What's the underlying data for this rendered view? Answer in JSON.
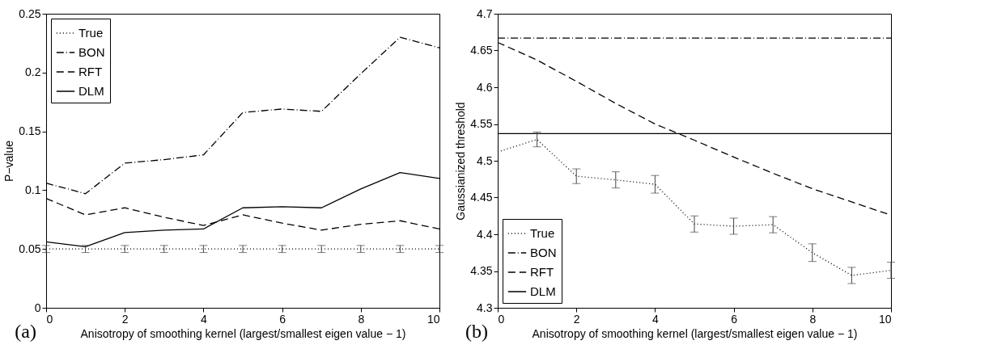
{
  "chart_data": [
    {
      "type": "line",
      "xlabel": "Anisotropy of smoothing kernel (largest/smallest eigen value − 1)",
      "ylabel": "P−value",
      "annotations": [
        "(a)"
      ],
      "x": [
        0,
        1,
        2,
        3,
        4,
        5,
        6,
        7,
        8,
        9,
        10
      ],
      "xlim": [
        0,
        10
      ],
      "xticks": [
        0,
        2,
        4,
        6,
        8,
        10
      ],
      "ylim": [
        0,
        0.25
      ],
      "yticks": [
        0,
        0.05,
        0.1,
        0.15,
        0.2,
        0.25
      ],
      "grid": false,
      "legend": "top left",
      "series": [
        {
          "name": "True",
          "color": "#000000",
          "line_style": "dotted",
          "values": [
            0.05,
            0.05,
            0.05,
            0.05,
            0.05,
            0.05,
            0.05,
            0.05,
            0.05,
            0.05,
            0.05
          ],
          "errors": [
            0.003,
            0.003,
            0.003,
            0.003,
            0.003,
            0.003,
            0.003,
            0.003,
            0.003,
            0.003,
            0.003
          ]
        },
        {
          "name": "BON",
          "color": "#000000",
          "line_style": "dashdot",
          "values": [
            0.106,
            0.097,
            0.123,
            0.126,
            0.13,
            0.166,
            0.169,
            0.167,
            0.199,
            0.23,
            0.221
          ]
        },
        {
          "name": "RFT",
          "color": "#000000",
          "line_style": "dashed",
          "values": [
            0.093,
            0.079,
            0.085,
            0.077,
            0.07,
            0.079,
            0.072,
            0.066,
            0.071,
            0.074,
            0.067
          ]
        },
        {
          "name": "DLM",
          "color": "#000000",
          "line_style": "solid",
          "values": [
            0.056,
            0.052,
            0.064,
            0.066,
            0.067,
            0.085,
            0.086,
            0.085,
            0.101,
            0.115,
            0.11
          ]
        }
      ]
    },
    {
      "type": "line",
      "xlabel": "Anisotropy of smoothing kernel (largest/smallest eigen value − 1)",
      "ylabel": "Gaussianized threshold",
      "annotations": [
        "(b)"
      ],
      "x": [
        0,
        1,
        2,
        3,
        4,
        5,
        6,
        7,
        8,
        9,
        10
      ],
      "xlim": [
        0,
        10
      ],
      "xticks": [
        0,
        2,
        4,
        6,
        8,
        10
      ],
      "ylim": [
        4.3,
        4.7
      ],
      "yticks": [
        4.3,
        4.35,
        4.4,
        4.45,
        4.5,
        4.55,
        4.6,
        4.65,
        4.7
      ],
      "grid": false,
      "legend": "bottom left",
      "series": [
        {
          "name": "True",
          "color": "#000000",
          "line_style": "dotted",
          "values": [
            4.512,
            4.529,
            4.479,
            4.474,
            4.468,
            4.414,
            4.411,
            4.413,
            4.375,
            4.344,
            4.351
          ],
          "errors": [
            null,
            0.01,
            0.01,
            0.011,
            0.012,
            0.011,
            0.011,
            0.011,
            0.012,
            0.011,
            0.011
          ]
        },
        {
          "name": "BON",
          "color": "#000000",
          "line_style": "dashdot",
          "values": [
            4.667,
            4.667,
            4.667,
            4.667,
            4.667,
            4.667,
            4.667,
            4.667,
            4.667,
            4.667,
            4.667
          ]
        },
        {
          "name": "RFT",
          "color": "#000000",
          "line_style": "dashed",
          "values": [
            4.661,
            4.637,
            4.608,
            4.578,
            4.55,
            4.528,
            4.505,
            4.483,
            4.462,
            4.444,
            4.426
          ]
        },
        {
          "name": "DLM",
          "color": "#000000",
          "line_style": "solid",
          "values": [
            4.537,
            4.537,
            4.537,
            4.537,
            4.537,
            4.537,
            4.537,
            4.537,
            4.537,
            4.537,
            4.537
          ]
        }
      ]
    }
  ]
}
